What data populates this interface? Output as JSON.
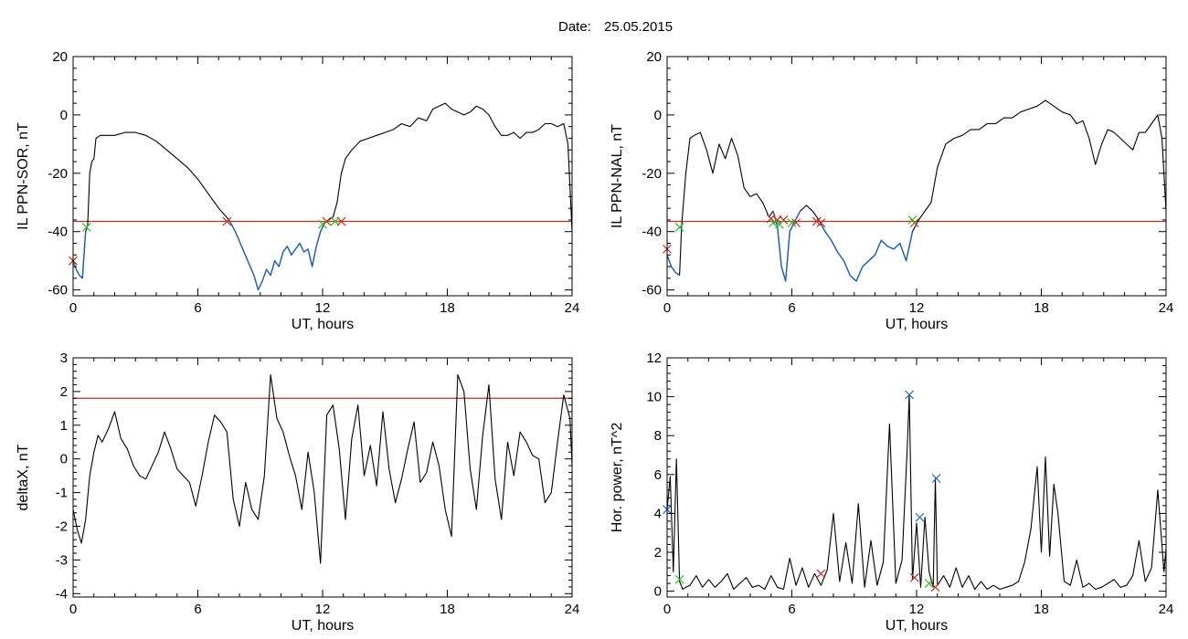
{
  "header": {
    "date_label": "Date:",
    "date_value": "25.05.2015"
  },
  "colors": {
    "trace": "#000000",
    "highlight": "#1f5fbf",
    "threshold": "#cc2a1a",
    "marker_red": "#d02a1a",
    "marker_green": "#2fbf2f",
    "marker_blue": "#1f6fcf"
  },
  "chart_data": [
    {
      "id": "il-ppn-sor",
      "type": "line",
      "title": "",
      "xlabel": "UT, hours",
      "ylabel": "IL PPN-SOR, nT",
      "xlim": [
        0,
        24
      ],
      "ylim": [
        -62,
        20
      ],
      "xticks": [
        0,
        6,
        12,
        18,
        24
      ],
      "xtick_labels": [
        "0",
        "6",
        "12",
        "18",
        "24"
      ],
      "yticks": [
        -60,
        -40,
        -20,
        0,
        20
      ],
      "ytick_labels": [
        "-60",
        "-40",
        "-20",
        "0",
        "20"
      ],
      "grid": false,
      "series": [
        {
          "x": [
            0,
            0.15,
            0.3,
            0.45,
            0.6,
            0.7,
            0.8,
            0.9,
            1.0,
            1.1,
            1.3,
            1.5,
            2.0,
            2.5,
            3.0,
            3.5,
            4.0,
            4.5,
            5.0,
            5.5,
            6.0,
            6.5,
            7.0,
            7.5,
            7.8,
            8.1,
            8.4,
            8.7,
            8.9,
            9.1,
            9.3,
            9.5,
            9.7,
            9.9,
            10.1,
            10.3,
            10.5,
            10.7,
            10.9,
            11.1,
            11.3,
            11.5,
            11.7,
            11.9,
            12.1,
            12.3,
            12.5,
            12.7,
            12.9,
            13.1,
            13.4,
            13.8,
            14.2,
            14.6,
            15.0,
            15.4,
            15.8,
            16.2,
            16.6,
            17.0,
            17.3,
            17.6,
            17.9,
            18.2,
            18.5,
            18.8,
            19.1,
            19.4,
            19.7,
            20.0,
            20.3,
            20.6,
            20.9,
            21.2,
            21.5,
            21.8,
            22.1,
            22.4,
            22.7,
            23.0,
            23.3,
            23.6,
            23.8,
            24.0
          ],
          "values": [
            -50,
            -53,
            -55,
            -56,
            -40,
            -38,
            -20,
            -16,
            -15,
            -8,
            -7,
            -7,
            -7,
            -6,
            -6,
            -7,
            -9,
            -12,
            -15,
            -18,
            -22,
            -27,
            -32,
            -36,
            -40,
            -45,
            -50,
            -55,
            -60,
            -57,
            -53,
            -55,
            -50,
            -52,
            -47,
            -45,
            -48,
            -46,
            -44,
            -47,
            -46,
            -52,
            -45,
            -40,
            -37,
            -36,
            -35,
            -30,
            -20,
            -15,
            -12,
            -9,
            -8,
            -7,
            -6,
            -5,
            -3,
            -4,
            -1,
            -2,
            2,
            3,
            4,
            2,
            1,
            0,
            1,
            3,
            2,
            0,
            -4,
            -7,
            -7,
            -6,
            -8,
            -6,
            -6,
            -5,
            -3,
            -3,
            -4,
            -3,
            -10,
            -40
          ]
        }
      ],
      "threshold": -36.5,
      "highlight_ranges": [
        [
          0,
          0.65
        ],
        [
          7.4,
          12.3
        ]
      ],
      "markers": {
        "red": [
          [
            0,
            -50
          ],
          [
            7.4,
            -36.5
          ],
          [
            12.2,
            -36.5
          ],
          [
            12.9,
            -36.5
          ]
        ],
        "green": [
          [
            0.65,
            -38.5
          ],
          [
            12.0,
            -37.5
          ],
          [
            12.6,
            -36.5
          ]
        ]
      }
    },
    {
      "id": "il-ppn-nal",
      "type": "line",
      "title": "",
      "xlabel": "UT, hours",
      "ylabel": "IL PPN-NAL, nT",
      "xlim": [
        0,
        24
      ],
      "ylim": [
        -62,
        20
      ],
      "xticks": [
        0,
        6,
        12,
        18,
        24
      ],
      "xtick_labels": [
        "0",
        "6",
        "12",
        "18",
        "24"
      ],
      "yticks": [
        -60,
        -40,
        -20,
        0,
        20
      ],
      "ytick_labels": [
        "-60",
        "-40",
        "-20",
        "0",
        "20"
      ],
      "grid": false,
      "series": [
        {
          "x": [
            0,
            0.2,
            0.4,
            0.6,
            0.7,
            0.9,
            1.1,
            1.3,
            1.6,
            1.9,
            2.2,
            2.5,
            2.8,
            3.1,
            3.4,
            3.7,
            4.0,
            4.3,
            4.6,
            4.9,
            5.1,
            5.3,
            5.5,
            5.7,
            5.9,
            6.1,
            6.4,
            6.7,
            7.0,
            7.3,
            7.6,
            7.9,
            8.2,
            8.5,
            8.8,
            9.1,
            9.4,
            9.7,
            10.0,
            10.3,
            10.6,
            10.9,
            11.2,
            11.5,
            11.8,
            12.1,
            12.4,
            12.7,
            13.0,
            13.4,
            13.8,
            14.2,
            14.6,
            15.0,
            15.4,
            15.8,
            16.2,
            16.6,
            17.0,
            17.4,
            17.8,
            18.2,
            18.6,
            19.0,
            19.4,
            19.7,
            20.0,
            20.3,
            20.6,
            20.9,
            21.2,
            21.5,
            21.8,
            22.1,
            22.4,
            22.7,
            23.0,
            23.3,
            23.6,
            23.8,
            24.0
          ],
          "values": [
            -48,
            -52,
            -54,
            -55,
            -38,
            -20,
            -8,
            -7,
            -6,
            -12,
            -20,
            -10,
            -15,
            -8,
            -14,
            -25,
            -28,
            -27,
            -30,
            -35,
            -33,
            -38,
            -52,
            -57,
            -40,
            -37,
            -33,
            -31,
            -33,
            -36,
            -40,
            -43,
            -47,
            -50,
            -55,
            -57,
            -52,
            -50,
            -48,
            -43,
            -45,
            -46,
            -44,
            -50,
            -40,
            -36,
            -33,
            -30,
            -18,
            -10,
            -8,
            -7,
            -5,
            -5,
            -3,
            -3,
            -1,
            -1,
            1,
            2,
            3,
            5,
            3,
            1,
            0,
            -3,
            -2,
            -8,
            -17,
            -10,
            -5,
            -6,
            -8,
            -10,
            -12,
            -6,
            -6,
            -3,
            0,
            -8,
            -33
          ]
        }
      ],
      "threshold": -36.5,
      "highlight_ranges": [
        [
          0,
          0.6
        ],
        [
          5.0,
          6.4
        ],
        [
          7.1,
          12.0
        ]
      ],
      "markers": {
        "red": [
          [
            0,
            -46
          ],
          [
            5.0,
            -35.5
          ],
          [
            5.3,
            -36
          ],
          [
            5.6,
            -36
          ],
          [
            6.2,
            -37
          ],
          [
            7.2,
            -36.5
          ],
          [
            7.4,
            -37
          ],
          [
            11.9,
            -37
          ]
        ],
        "green": [
          [
            0.6,
            -38.5
          ],
          [
            5.1,
            -37
          ],
          [
            5.4,
            -37.5
          ],
          [
            6.0,
            -37
          ],
          [
            11.8,
            -36
          ]
        ]
      }
    },
    {
      "id": "delta-x",
      "type": "line",
      "title": "",
      "xlabel": "UT, hours",
      "ylabel": "deltaX, nT",
      "xlim": [
        0,
        24
      ],
      "ylim": [
        -4.1,
        3
      ],
      "xticks": [
        0,
        6,
        12,
        18,
        24
      ],
      "xtick_labels": [
        "0",
        "6",
        "12",
        "18",
        "24"
      ],
      "yticks": [
        -4,
        -3,
        -2,
        -1,
        0,
        1,
        2,
        3
      ],
      "ytick_labels": [
        "-4",
        "-3",
        "-2",
        "-1",
        "0",
        "1",
        "2",
        "3"
      ],
      "grid": false,
      "series": [
        {
          "x": [
            0,
            0.2,
            0.4,
            0.6,
            0.8,
            1.0,
            1.2,
            1.4,
            1.7,
            2.0,
            2.3,
            2.6,
            2.9,
            3.2,
            3.5,
            3.8,
            4.1,
            4.4,
            4.7,
            5.0,
            5.3,
            5.6,
            5.9,
            6.2,
            6.5,
            6.8,
            7.1,
            7.4,
            7.7,
            8.0,
            8.3,
            8.6,
            8.9,
            9.2,
            9.5,
            9.8,
            10.1,
            10.4,
            10.7,
            11.0,
            11.3,
            11.6,
            11.9,
            12.2,
            12.5,
            12.8,
            13.1,
            13.4,
            13.7,
            14.0,
            14.3,
            14.6,
            14.9,
            15.2,
            15.5,
            15.8,
            16.1,
            16.4,
            16.7,
            17.0,
            17.3,
            17.6,
            17.9,
            18.2,
            18.5,
            18.8,
            19.1,
            19.4,
            19.7,
            20.0,
            20.3,
            20.6,
            20.9,
            21.2,
            21.5,
            21.8,
            22.1,
            22.4,
            22.7,
            23.0,
            23.3,
            23.6,
            23.9,
            24.0
          ],
          "values": [
            -1.5,
            -2.1,
            -2.5,
            -1.8,
            -0.5,
            0.2,
            0.7,
            0.5,
            0.9,
            1.4,
            0.6,
            0.3,
            -0.2,
            -0.5,
            -0.6,
            -0.2,
            0.2,
            0.8,
            0.3,
            -0.3,
            -0.5,
            -0.7,
            -1.4,
            -0.5,
            0.5,
            1.3,
            1.1,
            0.8,
            -1.2,
            -2.0,
            -0.7,
            -1.5,
            -1.8,
            -0.5,
            2.5,
            1.2,
            0.8,
            0.1,
            -0.5,
            -1.5,
            0.2,
            -1.0,
            -3.1,
            1.3,
            1.6,
            0.3,
            -1.8,
            0.6,
            1.6,
            -0.5,
            0.4,
            -0.8,
            1.4,
            -0.3,
            -1.3,
            -0.6,
            0.3,
            1.1,
            -0.7,
            -0.4,
            0.5,
            -0.2,
            -1.5,
            -2.3,
            2.5,
            2.0,
            -0.3,
            -1.5,
            0.7,
            2.2,
            -0.6,
            -1.8,
            0.5,
            -0.5,
            0.8,
            0.5,
            0.1,
            0.0,
            -1.3,
            -1.0,
            0.5,
            1.9,
            1.2,
            -0.2
          ]
        }
      ],
      "threshold": 1.8,
      "highlight_ranges": [],
      "markers": {
        "red": [],
        "green": []
      }
    },
    {
      "id": "hor-power",
      "type": "line",
      "title": "",
      "xlabel": "UT, hours",
      "ylabel": "Hor. power, nT^2",
      "xlim": [
        0,
        24
      ],
      "ylim": [
        -0.3,
        12
      ],
      "xticks": [
        0,
        6,
        12,
        18,
        24
      ],
      "xtick_labels": [
        "0",
        "6",
        "12",
        "18",
        "24"
      ],
      "yticks": [
        0,
        2,
        4,
        6,
        8,
        10,
        12
      ],
      "ytick_labels": [
        "0",
        "2",
        "4",
        "6",
        "8",
        "10",
        "12"
      ],
      "grid": false,
      "series": [
        {
          "x": [
            0,
            0.15,
            0.3,
            0.45,
            0.6,
            0.75,
            0.9,
            1.1,
            1.4,
            1.7,
            2.0,
            2.3,
            2.6,
            2.9,
            3.2,
            3.5,
            3.8,
            4.1,
            4.4,
            4.7,
            5.0,
            5.3,
            5.6,
            5.9,
            6.2,
            6.5,
            6.8,
            7.1,
            7.4,
            7.7,
            8.0,
            8.3,
            8.6,
            8.9,
            9.2,
            9.5,
            9.8,
            10.1,
            10.4,
            10.7,
            11.0,
            11.3,
            11.55,
            11.65,
            11.8,
            12.0,
            12.2,
            12.4,
            12.6,
            12.8,
            12.9,
            13.0,
            13.3,
            13.6,
            13.9,
            14.2,
            14.5,
            14.8,
            15.1,
            15.4,
            15.7,
            16.0,
            16.3,
            16.6,
            16.9,
            17.2,
            17.5,
            17.8,
            18.0,
            18.2,
            18.4,
            18.6,
            18.8,
            19.1,
            19.4,
            19.7,
            20.0,
            20.3,
            20.6,
            20.9,
            21.2,
            21.5,
            21.8,
            22.1,
            22.4,
            22.7,
            23.0,
            23.3,
            23.6,
            23.9,
            24.0
          ],
          "values": [
            4.2,
            5.9,
            1.0,
            6.8,
            0.5,
            0.1,
            0.2,
            0.3,
            0.8,
            0.2,
            0.6,
            0.2,
            0.5,
            0.9,
            0.1,
            0.4,
            0.7,
            0.2,
            0.3,
            0.1,
            0.8,
            0.2,
            0.1,
            1.7,
            0.3,
            1.2,
            0.2,
            0.9,
            0.3,
            1.1,
            4.0,
            0.5,
            2.5,
            0.4,
            4.5,
            0.2,
            2.6,
            0.3,
            1.5,
            8.6,
            0.4,
            1.6,
            7.4,
            10.1,
            0.6,
            3.5,
            0.2,
            3.8,
            1.0,
            0.2,
            5.8,
            0.3,
            0.8,
            0.2,
            1.2,
            0.2,
            0.8,
            0.1,
            0.5,
            0.1,
            0.3,
            0.1,
            0.2,
            0.3,
            0.5,
            1.5,
            3.2,
            6.4,
            2.0,
            6.9,
            1.8,
            5.5,
            4.0,
            0.5,
            0.3,
            1.6,
            0.2,
            0.4,
            0.1,
            0.2,
            0.4,
            0.6,
            0.2,
            0.3,
            0.8,
            2.6,
            0.5,
            1.2,
            5.2,
            1.0,
            2.2
          ]
        }
      ],
      "threshold": null,
      "highlight_ranges": [],
      "markers": {
        "red": [
          [
            7.4,
            0.9
          ],
          [
            11.9,
            0.7
          ],
          [
            12.9,
            0.2
          ]
        ],
        "green": [
          [
            0.6,
            0.6
          ],
          [
            12.6,
            0.4
          ]
        ],
        "blue": [
          [
            11.65,
            10.1
          ],
          [
            12.15,
            3.8
          ],
          [
            12.95,
            5.8
          ],
          [
            0.0,
            4.2
          ]
        ]
      }
    }
  ]
}
